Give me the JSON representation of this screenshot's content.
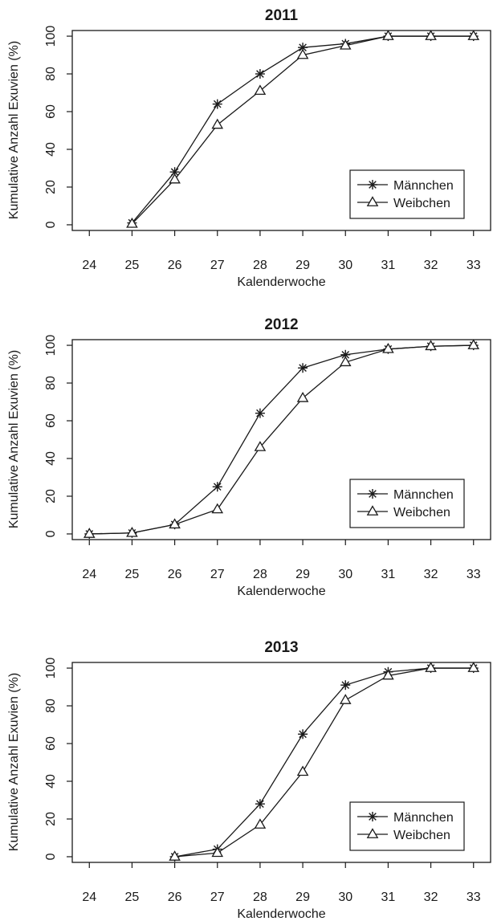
{
  "chart_data": [
    {
      "type": "line",
      "title": "2011",
      "xlabel": "Kalenderwoche",
      "ylabel": "Kumulative Anzahl Exuvien (%)",
      "x": [
        24,
        25,
        26,
        27,
        28,
        29,
        30,
        31,
        32,
        33
      ],
      "xlim": [
        24,
        33
      ],
      "ylim": [
        0,
        100
      ],
      "yticks": [
        0,
        20,
        40,
        60,
        80,
        100
      ],
      "grid": false,
      "legend_position": "bottom-right",
      "series": [
        {
          "name": "Männchen",
          "marker": "asterisk",
          "x": [
            25,
            26,
            27,
            28,
            29,
            30,
            31,
            32,
            33
          ],
          "values": [
            1,
            28,
            64,
            80,
            94,
            96,
            100,
            100,
            100
          ]
        },
        {
          "name": "Weibchen",
          "marker": "triangle",
          "x": [
            25,
            26,
            27,
            28,
            29,
            30,
            31,
            32,
            33
          ],
          "values": [
            0.5,
            24,
            53,
            71,
            90,
            95,
            100,
            100,
            100
          ]
        }
      ]
    },
    {
      "type": "line",
      "title": "2012",
      "xlabel": "Kalenderwoche",
      "ylabel": "Kumulative Anzahl Exuvien (%)",
      "x": [
        24,
        25,
        26,
        27,
        28,
        29,
        30,
        31,
        32,
        33
      ],
      "xlim": [
        24,
        33
      ],
      "ylim": [
        0,
        100
      ],
      "yticks": [
        0,
        20,
        40,
        60,
        80,
        100
      ],
      "grid": false,
      "legend_position": "bottom-right",
      "series": [
        {
          "name": "Männchen",
          "marker": "asterisk",
          "x": [
            24,
            25,
            26,
            27,
            28,
            29,
            30,
            31,
            32,
            33
          ],
          "values": [
            0,
            0.5,
            5,
            25,
            64,
            88,
            95,
            98,
            99.5,
            100
          ]
        },
        {
          "name": "Weibchen",
          "marker": "triangle",
          "x": [
            24,
            25,
            26,
            27,
            28,
            29,
            30,
            31,
            32,
            33
          ],
          "values": [
            0,
            0.5,
            5,
            13,
            46,
            72,
            91,
            98,
            99.5,
            100
          ]
        }
      ]
    },
    {
      "type": "line",
      "title": "2013",
      "xlabel": "Kalenderwoche",
      "ylabel": "Kumulative Anzahl Exuvien (%)",
      "x": [
        24,
        25,
        26,
        27,
        28,
        29,
        30,
        31,
        32,
        33
      ],
      "xlim": [
        24,
        33
      ],
      "ylim": [
        0,
        100
      ],
      "yticks": [
        0,
        20,
        40,
        60,
        80,
        100
      ],
      "grid": false,
      "legend_position": "bottom-right",
      "series": [
        {
          "name": "Männchen",
          "marker": "asterisk",
          "x": [
            26,
            27,
            28,
            29,
            30,
            31,
            32,
            33
          ],
          "values": [
            0,
            4,
            28,
            65,
            91,
            98,
            100,
            100
          ]
        },
        {
          "name": "Weibchen",
          "marker": "triangle",
          "x": [
            26,
            27,
            28,
            29,
            30,
            31,
            32,
            33
          ],
          "values": [
            0,
            2,
            17,
            45,
            83,
            96,
            100,
            100
          ]
        }
      ]
    }
  ]
}
